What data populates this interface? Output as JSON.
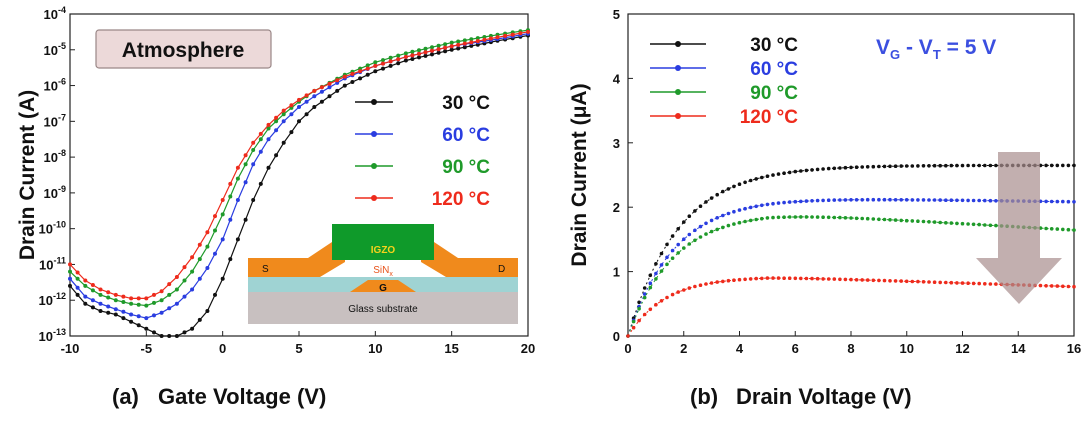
{
  "colors": {
    "30": "#111111",
    "60": "#2a3de0",
    "90": "#1f9a2a",
    "120": "#ee2b1c",
    "annotation": "#3b4fe0"
  },
  "chart_data": [
    {
      "type": "line",
      "panel_label": "(a)",
      "xlabel": "Gate Voltage (V)",
      "ylabel": "Drain Current (A)",
      "xlim": [
        -10,
        20
      ],
      "ylim_log10": [
        -13,
        -4
      ],
      "y_scale": "log",
      "x_ticks": [
        "-10",
        "-5",
        "0",
        "5",
        "10",
        "15",
        "20"
      ],
      "y_ticks": [
        {
          "base": "10",
          "exp": "-13"
        },
        {
          "base": "10",
          "exp": "-12"
        },
        {
          "base": "10",
          "exp": "-11"
        },
        {
          "base": "10",
          "exp": "-10"
        },
        {
          "base": "10",
          "exp": "-9"
        },
        {
          "base": "10",
          "exp": "-8"
        },
        {
          "base": "10",
          "exp": "-7"
        },
        {
          "base": "10",
          "exp": "-6"
        },
        {
          "base": "10",
          "exp": "-5"
        },
        {
          "base": "10",
          "exp": "-4"
        }
      ],
      "annotation": "Atmosphere",
      "legend_position": "center-right",
      "series": [
        {
          "name": "30",
          "unit": "°C",
          "color_key": "30",
          "points": [
            [
              -10,
              -11.6
            ],
            [
              -9,
              -12.1
            ],
            [
              -8,
              -12.3
            ],
            [
              -7,
              -12.4
            ],
            [
              -6,
              -12.6
            ],
            [
              -5,
              -12.8
            ],
            [
              -4,
              -13
            ],
            [
              -3,
              -13
            ],
            [
              -2,
              -12.8
            ],
            [
              -1,
              -12.3
            ],
            [
              0,
              -11.4
            ],
            [
              1,
              -10.3
            ],
            [
              2,
              -9.2
            ],
            [
              3,
              -8.3
            ],
            [
              4,
              -7.6
            ],
            [
              5,
              -7.0
            ],
            [
              6,
              -6.6
            ],
            [
              8,
              -6.0
            ],
            [
              10,
              -5.6
            ],
            [
              12,
              -5.3
            ],
            [
              15,
              -5.0
            ],
            [
              18,
              -4.75
            ],
            [
              20,
              -4.6
            ]
          ]
        },
        {
          "name": "60",
          "unit": "°C",
          "color_key": "60",
          "points": [
            [
              -10,
              -11.4
            ],
            [
              -9,
              -11.9
            ],
            [
              -8,
              -12.1
            ],
            [
              -7,
              -12.25
            ],
            [
              -6,
              -12.4
            ],
            [
              -5,
              -12.5
            ],
            [
              -4,
              -12.35
            ],
            [
              -3,
              -12.1
            ],
            [
              -2,
              -11.7
            ],
            [
              -1,
              -11.1
            ],
            [
              0,
              -10.3
            ],
            [
              1,
              -9.2
            ],
            [
              2,
              -8.2
            ],
            [
              3,
              -7.5
            ],
            [
              4,
              -7.0
            ],
            [
              5,
              -6.6
            ],
            [
              6,
              -6.3
            ],
            [
              8,
              -5.8
            ],
            [
              10,
              -5.45
            ],
            [
              12,
              -5.2
            ],
            [
              15,
              -4.9
            ],
            [
              18,
              -4.7
            ],
            [
              20,
              -4.55
            ]
          ]
        },
        {
          "name": "90",
          "unit": "°C",
          "color_key": "90",
          "points": [
            [
              -10,
              -11.2
            ],
            [
              -9,
              -11.6
            ],
            [
              -8,
              -11.85
            ],
            [
              -7,
              -12.0
            ],
            [
              -6,
              -12.1
            ],
            [
              -5,
              -12.15
            ],
            [
              -4,
              -12.0
            ],
            [
              -3,
              -11.7
            ],
            [
              -2,
              -11.2
            ],
            [
              -1,
              -10.5
            ],
            [
              0,
              -9.6
            ],
            [
              1,
              -8.6
            ],
            [
              2,
              -7.8
            ],
            [
              3,
              -7.2
            ],
            [
              4,
              -6.8
            ],
            [
              5,
              -6.45
            ],
            [
              6,
              -6.15
            ],
            [
              8,
              -5.7
            ],
            [
              10,
              -5.35
            ],
            [
              12,
              -5.1
            ],
            [
              15,
              -4.8
            ],
            [
              18,
              -4.58
            ],
            [
              20,
              -4.45
            ]
          ]
        },
        {
          "name": "120",
          "unit": "°C",
          "color_key": "120",
          "points": [
            [
              -10,
              -11.0
            ],
            [
              -9,
              -11.45
            ],
            [
              -8,
              -11.7
            ],
            [
              -7,
              -11.85
            ],
            [
              -6,
              -11.95
            ],
            [
              -5,
              -11.95
            ],
            [
              -4,
              -11.75
            ],
            [
              -3,
              -11.35
            ],
            [
              -2,
              -10.8
            ],
            [
              -1,
              -10.1
            ],
            [
              0,
              -9.2
            ],
            [
              1,
              -8.3
            ],
            [
              2,
              -7.6
            ],
            [
              3,
              -7.1
            ],
            [
              4,
              -6.7
            ],
            [
              5,
              -6.4
            ],
            [
              6,
              -6.15
            ],
            [
              8,
              -5.75
            ],
            [
              10,
              -5.45
            ],
            [
              12,
              -5.2
            ],
            [
              15,
              -4.9
            ],
            [
              18,
              -4.65
            ],
            [
              20,
              -4.5
            ]
          ]
        }
      ],
      "inset_structure": {
        "top": "IGZO",
        "dielectric": "SiN",
        "dielectric_sub": "x",
        "gate": "G",
        "source": "S",
        "drain": "D",
        "substrate": "Glass substrate"
      }
    },
    {
      "type": "line",
      "panel_label": "(b)",
      "xlabel": "Drain Voltage (V)",
      "ylabel": "Drain Current (μA)",
      "xlim": [
        0,
        16
      ],
      "ylim": [
        0,
        5
      ],
      "x_ticks": [
        "0",
        "2",
        "4",
        "6",
        "8",
        "10",
        "12",
        "14",
        "16"
      ],
      "y_ticks": [
        "0",
        "1",
        "2",
        "3",
        "4",
        "5"
      ],
      "annotation": {
        "a": "V",
        "a_sub": "G",
        "mid": " - V",
        "b_sub": "T",
        "tail": " = 5 V"
      },
      "legend_position": "top-left",
      "series": [
        {
          "name": "30",
          "unit": "°C",
          "color_key": "30",
          "sat": 2.65,
          "k": 0.55,
          "slope": 0
        },
        {
          "name": "60",
          "unit": "°C",
          "color_key": "60",
          "sat": 2.15,
          "k": 0.6,
          "slope": -0.006
        },
        {
          "name": "90",
          "unit": "°C",
          "color_key": "90",
          "sat": 1.92,
          "k": 0.62,
          "slope": -0.025
        },
        {
          "name": "120",
          "unit": "°C",
          "color_key": "120",
          "sat": 0.92,
          "k": 0.75,
          "slope": -0.014
        }
      ]
    }
  ]
}
